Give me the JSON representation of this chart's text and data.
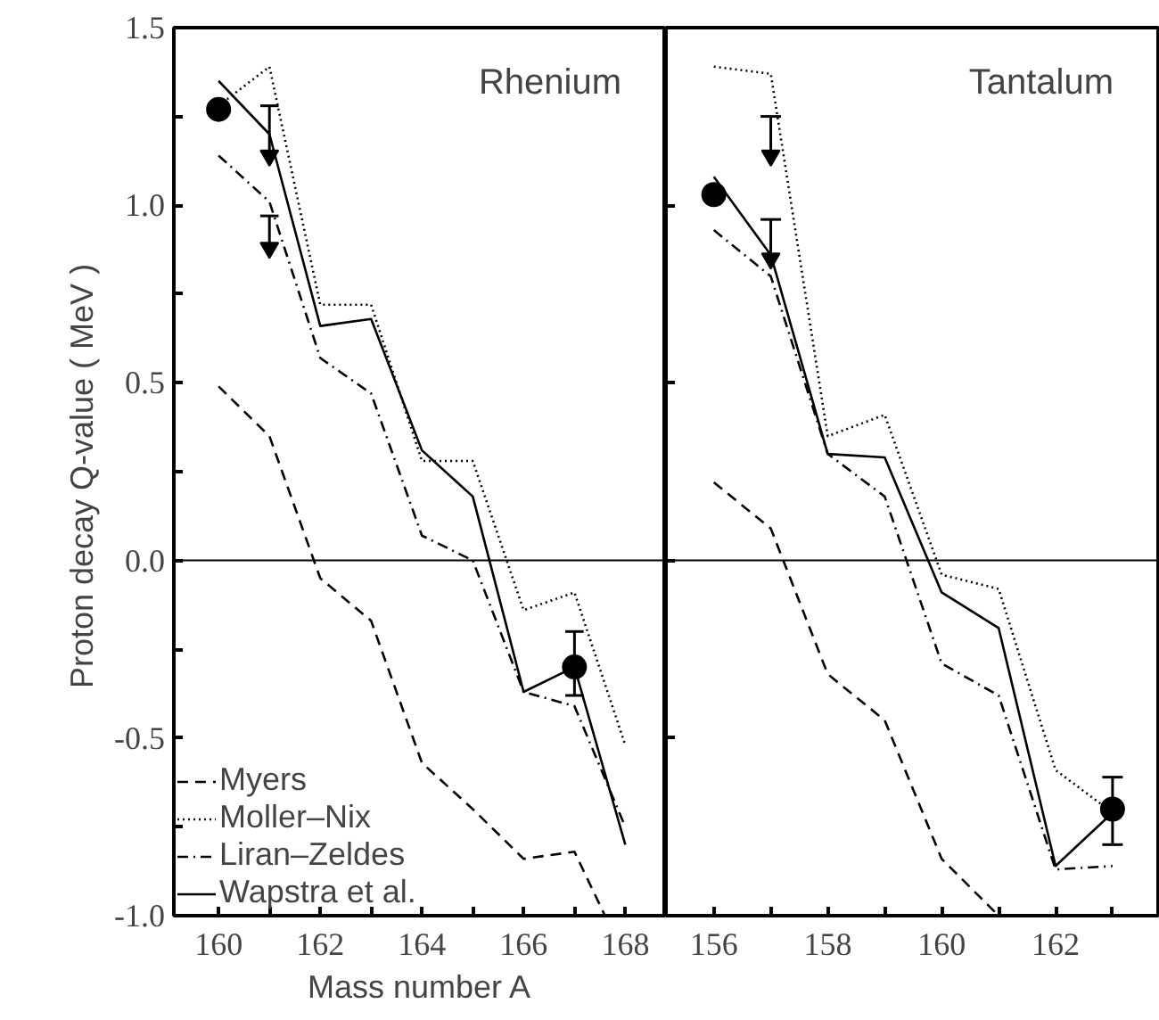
{
  "chart_data": [
    {
      "type": "line",
      "title": "Rhenium",
      "xlabel": "Mass number A",
      "ylabel": "Proton decay Q-value  ( MeV )",
      "xlim": [
        159.12,
        168.8
      ],
      "ylim": [
        -1.0,
        1.5
      ],
      "xticks": [
        160,
        {
          "value": 161,
          "label": null
        },
        162,
        {
          "value": 163,
          "label": null
        },
        164,
        {
          "value": 165,
          "label": null
        },
        166,
        {
          "value": 167,
          "label": null
        },
        168
      ],
      "yticks": [
        {
          "value": -1.0,
          "label": "-1.0"
        },
        {
          "value": -0.75,
          "label": null
        },
        {
          "value": -0.5,
          "label": "-0.5"
        },
        {
          "value": -0.25,
          "label": null
        },
        {
          "value": 0.0,
          "label": "0.0"
        },
        {
          "value": 0.25,
          "label": null
        },
        {
          "value": 0.5,
          "label": "0.5"
        },
        {
          "value": 0.75,
          "label": null
        },
        {
          "value": 1.0,
          "label": "1.0"
        },
        {
          "value": 1.25,
          "label": null
        },
        {
          "value": 1.5,
          "label": "1.5"
        }
      ],
      "legend": "bottom left",
      "grid": false,
      "ref_lines": [
        {
          "axis": "y",
          "value": 0,
          "color": "#000000"
        }
      ],
      "series": [
        {
          "name": "Myers",
          "type": "line",
          "line_style": "dashed",
          "color": "#000000",
          "x": [
            160,
            161,
            162,
            163,
            164,
            165,
            166,
            167,
            167.6
          ],
          "values": [
            0.49,
            0.35,
            -0.05,
            -0.17,
            -0.57,
            -0.7,
            -0.84,
            -0.82,
            -1.0
          ]
        },
        {
          "name": "Moller–Nix",
          "type": "line",
          "line_style": "dotted",
          "color": "#000000",
          "x": [
            160,
            161,
            162,
            163,
            164,
            165,
            166,
            167,
            168
          ],
          "values": [
            1.28,
            1.39,
            0.72,
            0.72,
            0.28,
            0.28,
            -0.14,
            -0.09,
            -0.52
          ]
        },
        {
          "name": "Liran–Zeldes",
          "type": "line",
          "line_style": "dashdot",
          "color": "#000000",
          "x": [
            160,
            161,
            162,
            163,
            164,
            165,
            166,
            167,
            168
          ],
          "values": [
            1.14,
            1.01,
            0.57,
            0.47,
            0.07,
            0.0,
            -0.37,
            -0.41,
            -0.75
          ]
        },
        {
          "name": "Wapstra et al.",
          "type": "line",
          "line_style": "solid",
          "color": "#000000",
          "x": [
            160,
            161,
            162,
            163,
            164,
            165,
            166,
            167,
            168
          ],
          "values": [
            1.35,
            1.2,
            0.66,
            0.68,
            0.31,
            0.18,
            -0.37,
            -0.3,
            -0.8
          ]
        },
        {
          "type": "scatter",
          "marker": "circle",
          "color": "#000000",
          "x": [
            160,
            167
          ],
          "values": [
            1.27,
            -0.3
          ],
          "errors": [
            null,
            [
              -0.38,
              -0.2
            ]
          ]
        },
        {
          "type": "scatter",
          "marker": "triangle",
          "color": "#000000",
          "x": [
            161,
            161
          ],
          "values": [
            1.14,
            0.88
          ],
          "errors": [
            [
              1.14,
              1.28
            ],
            [
              0.88,
              0.97
            ]
          ]
        }
      ]
    },
    {
      "type": "line",
      "title": "Tantalum",
      "tick_labels": "x",
      "xlim": [
        155.16,
        163.8
      ],
      "ylim": [
        -1.0,
        1.5
      ],
      "xticks": [
        156,
        {
          "value": 157,
          "label": null
        },
        158,
        {
          "value": 159,
          "label": null
        },
        160,
        {
          "value": 161,
          "label": null
        },
        162,
        {
          "value": 163,
          "label": null
        }
      ],
      "yticks": [
        {
          "value": -1.0,
          "label": null
        },
        {
          "value": -0.5,
          "label": null
        },
        {
          "value": 0.0,
          "label": null
        },
        {
          "value": 0.5,
          "label": null
        },
        {
          "value": 1.0,
          "label": null
        },
        {
          "value": 1.5,
          "label": null
        }
      ],
      "grid": false,
      "ref_lines": [
        {
          "axis": "y",
          "value": 0,
          "color": "#000000"
        }
      ],
      "series": [
        {
          "type": "line",
          "line_style": "dashed",
          "color": "#000000",
          "x": [
            156,
            157,
            158,
            159,
            160,
            161
          ],
          "values": [
            0.22,
            0.09,
            -0.32,
            -0.45,
            -0.84,
            -1.0
          ]
        },
        {
          "type": "line",
          "line_style": "dotted",
          "color": "#000000",
          "x": [
            156,
            157,
            158,
            159,
            160,
            161,
            162,
            163
          ],
          "values": [
            1.39,
            1.37,
            0.35,
            0.41,
            -0.04,
            -0.08,
            -0.59,
            -0.71
          ]
        },
        {
          "type": "line",
          "line_style": "dashdot",
          "color": "#000000",
          "x": [
            156,
            157,
            158,
            159,
            160,
            161,
            162,
            163
          ],
          "values": [
            0.93,
            0.8,
            0.3,
            0.18,
            -0.29,
            -0.38,
            -0.87,
            -0.86
          ]
        },
        {
          "type": "line",
          "line_style": "solid",
          "color": "#000000",
          "x": [
            156,
            157,
            158,
            159,
            160,
            161,
            162,
            163
          ],
          "values": [
            1.08,
            0.86,
            0.3,
            0.29,
            -0.09,
            -0.19,
            -0.86,
            -0.71
          ]
        },
        {
          "type": "scatter",
          "marker": "circle",
          "color": "#000000",
          "x": [
            156,
            163
          ],
          "values": [
            1.03,
            -0.7
          ],
          "errors": [
            null,
            [
              -0.8,
              -0.61
            ]
          ]
        },
        {
          "type": "scatter",
          "marker": "triangle",
          "color": "#000000",
          "x": [
            157,
            157
          ],
          "values": [
            1.14,
            0.85
          ],
          "errors": [
            [
              1.14,
              1.25
            ],
            [
              0.85,
              0.96
            ]
          ]
        }
      ]
    }
  ]
}
